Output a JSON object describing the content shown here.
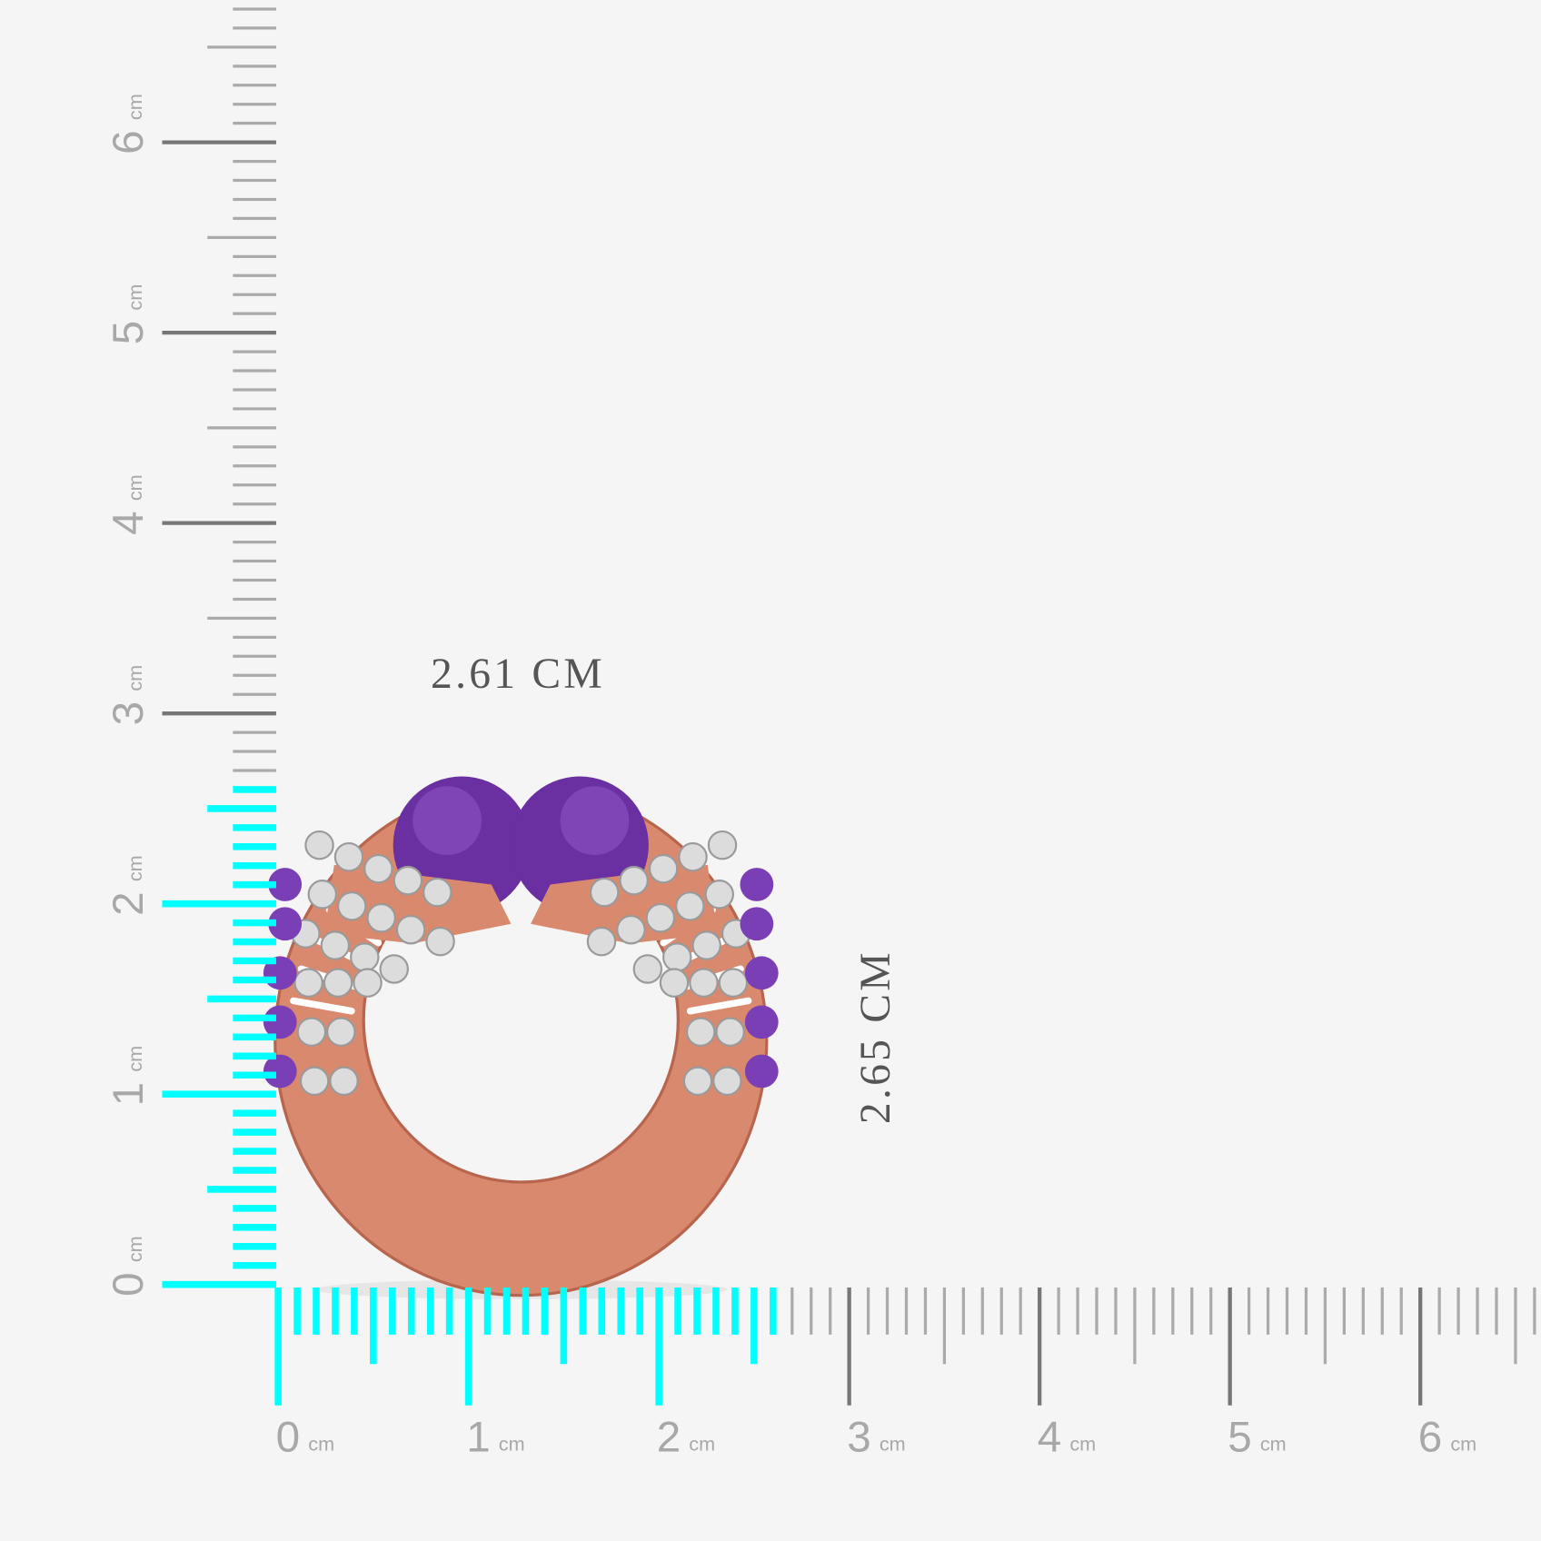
{
  "measurements": {
    "width": "2.61 CM",
    "height": "2.65 CM"
  },
  "horizontal_ruler": {
    "labels": [
      "0",
      "1",
      "2",
      "3",
      "4",
      "5",
      "6"
    ],
    "unit": "cm"
  },
  "vertical_ruler": {
    "labels": [
      "0",
      "1",
      "2",
      "3",
      "4",
      "5",
      "6"
    ],
    "unit": "cm"
  }
}
